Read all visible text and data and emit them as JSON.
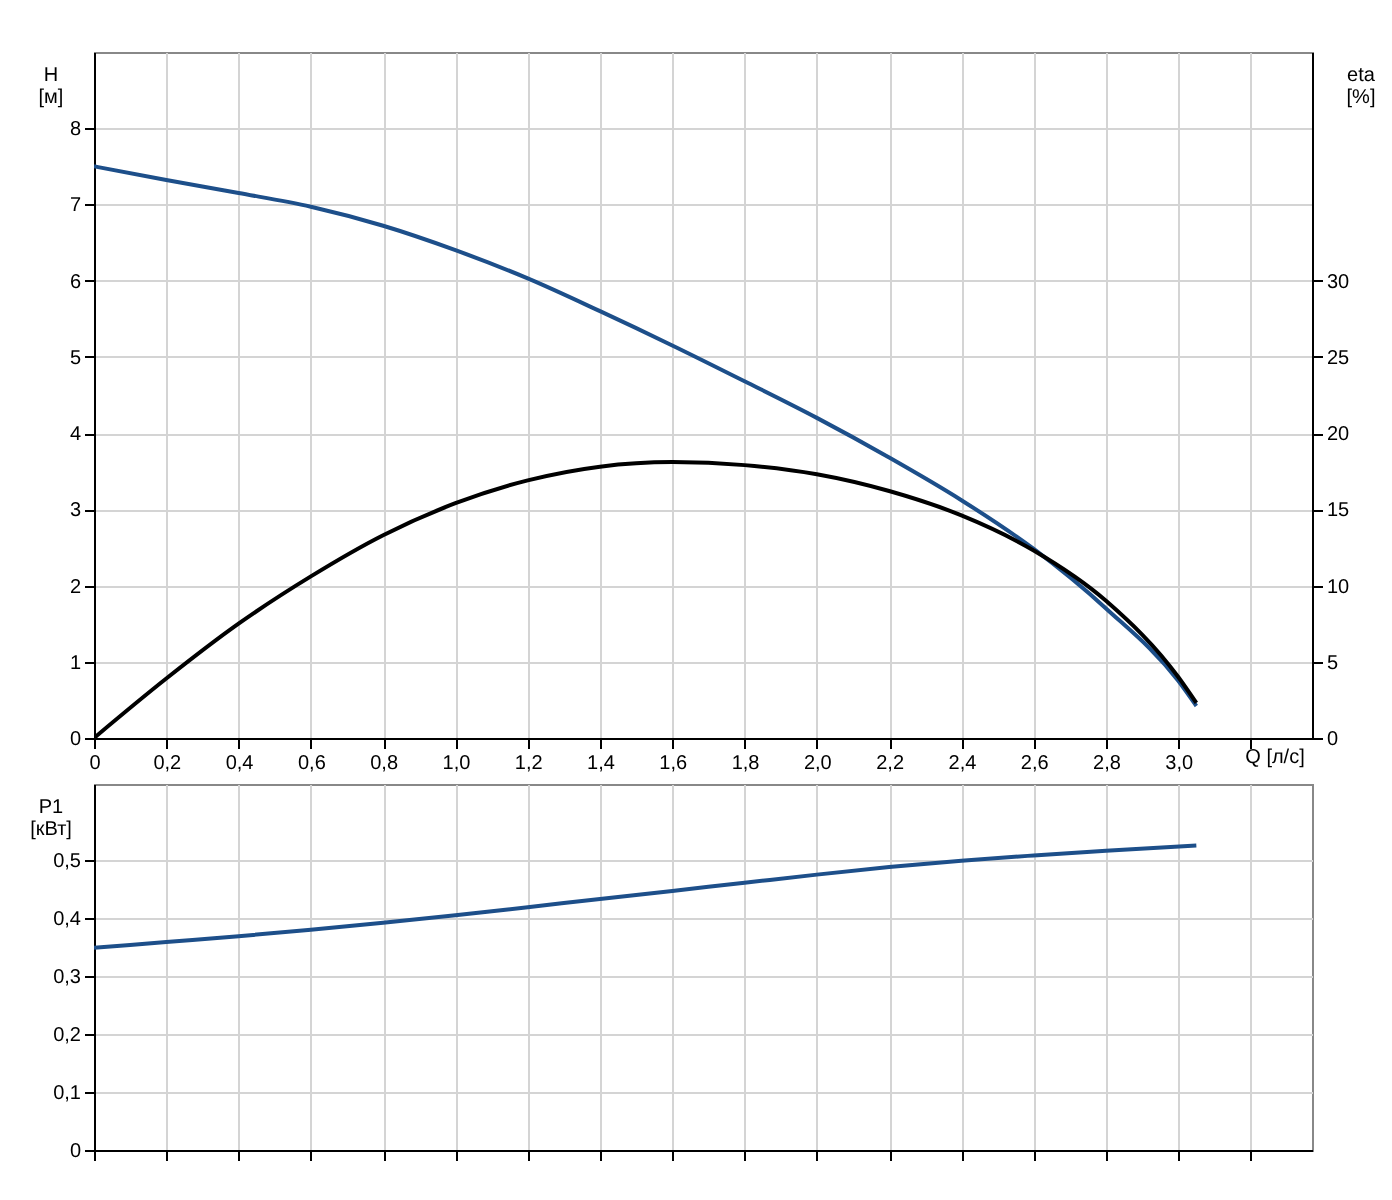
{
  "chart_data": [
    {
      "type": "line",
      "xlabel": "Q [л/с]",
      "ylabel": "H\n[м]",
      "y2label": "eta\n[%]",
      "x": [
        0,
        0.2,
        0.4,
        0.6,
        0.8,
        1.0,
        1.2,
        1.4,
        1.6,
        1.8,
        2.0,
        2.2,
        2.4,
        2.6,
        2.8,
        3.0,
        3.05
      ],
      "series": [
        {
          "color": "#1d4f8a",
          "values": [
            7.5,
            7.32,
            7.15,
            6.97,
            6.72,
            6.4,
            6.03,
            5.6,
            5.15,
            4.68,
            4.2,
            3.68,
            3.12,
            2.48,
            1.7,
            0.75,
            0.42
          ]
        },
        {
          "color": "#000000",
          "axis": "y2",
          "values": [
            0,
            3.9,
            7.5,
            10.6,
            13.3,
            15.4,
            16.9,
            17.8,
            18.1,
            17.9,
            17.3,
            16.2,
            14.6,
            12.3,
            9.0,
            4.0,
            2.3
          ]
        }
      ],
      "xlim": [
        0,
        3.37
      ],
      "xticks": [
        0,
        {
          "value": 0.2,
          "label": "0,2"
        },
        {
          "value": 0.4,
          "label": "0,4"
        },
        {
          "value": 0.6,
          "label": "0,6"
        },
        {
          "value": 0.8,
          "label": "0,8"
        },
        {
          "value": 1,
          "label": "1,0"
        },
        {
          "value": 1.2,
          "label": "1,2"
        },
        {
          "value": 1.4,
          "label": "1,4"
        },
        {
          "value": 1.6,
          "label": "1,6"
        },
        {
          "value": 1.8,
          "label": "1,8"
        },
        {
          "value": 2,
          "label": "2,0"
        },
        {
          "value": 2.2,
          "label": "2,2"
        },
        {
          "value": 2.4,
          "label": "2,4"
        },
        {
          "value": 2.6,
          "label": "2,6"
        },
        {
          "value": 2.8,
          "label": "2,8"
        },
        {
          "value": 3,
          "label": "3,0"
        },
        {
          "value": 3.2,
          "label": null
        }
      ],
      "ylim": [
        0,
        9
      ],
      "yticks": [
        0,
        1,
        2,
        3,
        4,
        5,
        6,
        7,
        8
      ],
      "y2lim": [
        0,
        45
      ],
      "y2ticks": [
        0,
        5,
        10,
        15,
        20,
        25,
        30
      ],
      "grid": true
    },
    {
      "type": "line",
      "ylabel": "P1\n[кВт]",
      "x": [
        0,
        0.2,
        0.4,
        0.6,
        0.8,
        1.0,
        1.2,
        1.4,
        1.6,
        1.8,
        2.0,
        2.2,
        2.4,
        2.6,
        2.8,
        3.05
      ],
      "series": [
        {
          "color": "#1d4f8a",
          "values": [
            0.348,
            0.358,
            0.368,
            0.379,
            0.391,
            0.404,
            0.418,
            0.432,
            0.446,
            0.46,
            0.474,
            0.487,
            0.498,
            0.507,
            0.515,
            0.524
          ]
        }
      ],
      "xlim": [
        0,
        3.37
      ],
      "xticks": [
        0,
        0.2,
        0.4,
        0.6,
        0.8,
        1,
        1.2,
        1.4,
        1.6,
        1.8,
        2,
        2.2,
        2.4,
        2.6,
        2.8,
        3,
        3.2
      ],
      "ylim": [
        0,
        0.63
      ],
      "yticks": [
        0,
        {
          "value": 0.1,
          "label": "0,1"
        },
        {
          "value": 0.2,
          "label": "0,2"
        },
        {
          "value": 0.3,
          "label": "0,3"
        },
        {
          "value": 0.4,
          "label": "0,4"
        },
        {
          "value": 0.5,
          "label": "0,5"
        }
      ],
      "tick_labels": "y",
      "grid": true
    }
  ]
}
